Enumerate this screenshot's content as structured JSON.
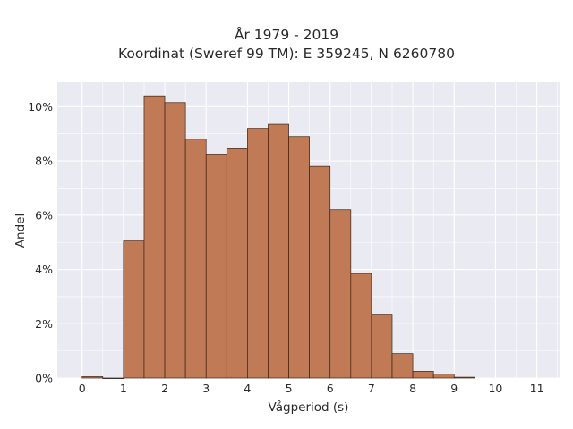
{
  "chart_data": {
    "type": "bar",
    "title_lines": [
      "År 1979 - 2019",
      "Koordinat (Sweref 99 TM): E 359245, N 6260780"
    ],
    "xlabel": "Vågperiod (s)",
    "ylabel": "Andel",
    "bin_width": 0.5,
    "bin_starts": [
      0,
      0.5,
      1.0,
      1.5,
      2.0,
      2.5,
      3.0,
      3.5,
      4.0,
      4.5,
      5.0,
      5.5,
      6.0,
      6.5,
      7.0,
      7.5,
      8.0,
      8.5,
      9.0
    ],
    "values": [
      0.05,
      0.0,
      5.05,
      10.4,
      10.15,
      8.8,
      8.25,
      8.45,
      9.2,
      9.35,
      8.9,
      7.8,
      6.2,
      3.85,
      2.35,
      0.9,
      0.25,
      0.15,
      0.03
    ],
    "xlim": [
      -0.6,
      11.55
    ],
    "ylim": [
      0,
      10.9
    ],
    "xticks": [
      0,
      1,
      2,
      3,
      4,
      5,
      6,
      7,
      8,
      9,
      10,
      11
    ],
    "yticks": [
      0,
      2,
      4,
      6,
      8,
      10
    ],
    "ytick_labels": [
      "0%",
      "2%",
      "4%",
      "6%",
      "8%",
      "10%"
    ],
    "bar_color": "#c07b56",
    "bar_edge_color": "#3a2418",
    "plot_background": "#eaeaf2",
    "grid": true
  }
}
